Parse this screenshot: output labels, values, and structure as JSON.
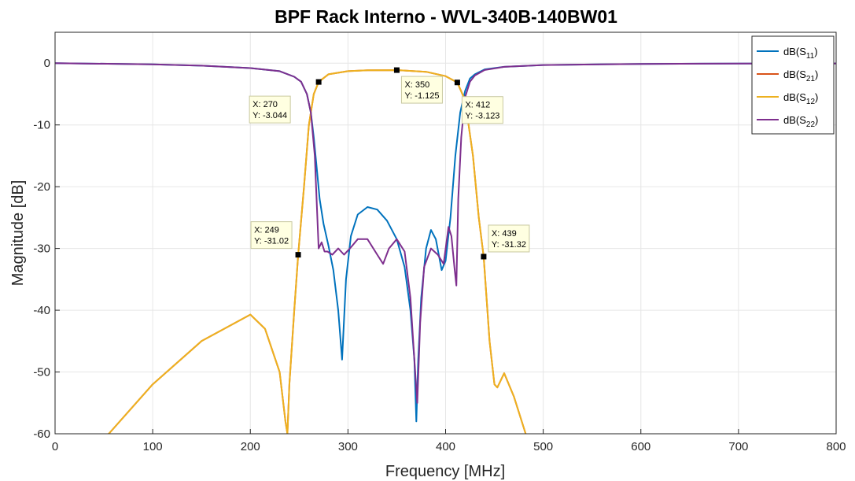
{
  "chart_data": {
    "type": "line",
    "title": "BPF Rack Interno - WVL-340B-140BW01",
    "xlabel": "Frequency [MHz]",
    "ylabel": "Magnitude [dB]",
    "xlim": [
      0,
      800
    ],
    "ylim": [
      -60,
      5
    ],
    "xticks": [
      0,
      100,
      200,
      300,
      400,
      500,
      600,
      700,
      800
    ],
    "yticks": [
      0,
      -10,
      -20,
      -30,
      -40,
      -50,
      -60
    ],
    "grid": true,
    "legend_position": "top-right",
    "series": [
      {
        "name": "dB(S11)",
        "color": "#0072BD",
        "x": [
          0,
          100,
          150,
          200,
          230,
          245,
          252,
          258,
          262,
          265,
          268,
          271,
          275,
          280,
          285,
          290,
          294,
          298,
          303,
          310,
          320,
          330,
          340,
          350,
          358,
          364,
          368,
          370,
          372,
          375,
          380,
          385,
          390,
          396,
          400,
          405,
          410,
          415,
          420,
          425,
          430,
          440,
          460,
          500,
          600,
          700,
          800
        ],
        "y": [
          0,
          -0.2,
          -0.4,
          -0.8,
          -1.3,
          -2.2,
          -3.0,
          -5,
          -8,
          -12,
          -17,
          -22,
          -26,
          -29.5,
          -33.5,
          -40,
          -48,
          -35,
          -28,
          -24.5,
          -23.3,
          -23.7,
          -25.5,
          -28.5,
          -33,
          -40,
          -48,
          -58,
          -48,
          -38,
          -30,
          -27,
          -28.5,
          -33.5,
          -32,
          -25,
          -15,
          -8,
          -4.5,
          -2.5,
          -1.8,
          -1.0,
          -0.6,
          -0.3,
          -0.12,
          -0.06,
          -0.05
        ]
      },
      {
        "name": "dB(S21)",
        "color": "#D95319",
        "x": [
          0,
          55,
          100,
          150,
          200,
          215,
          230,
          236,
          238,
          240,
          245,
          249,
          255,
          260,
          265,
          270,
          280,
          300,
          320,
          350,
          380,
          400,
          412,
          420,
          428,
          434,
          439,
          445,
          450,
          453,
          460,
          470,
          482
        ],
        "y": [
          -66,
          -60,
          -52,
          -45,
          -40.7,
          -43,
          -50,
          -58,
          -60,
          -52,
          -40,
          -31.02,
          -20,
          -10,
          -5,
          -3.044,
          -1.8,
          -1.3,
          -1.15,
          -1.125,
          -1.4,
          -2.1,
          -3.123,
          -6,
          -15,
          -25,
          -31.32,
          -45,
          -52,
          -52.5,
          -50.2,
          -54,
          -60
        ]
      },
      {
        "name": "dB(S12)",
        "color": "#EDB120",
        "x": [
          0,
          55,
          100,
          150,
          200,
          215,
          230,
          236,
          238,
          240,
          245,
          249,
          255,
          260,
          265,
          270,
          280,
          300,
          320,
          350,
          380,
          400,
          412,
          420,
          428,
          434,
          439,
          445,
          450,
          453,
          460,
          470,
          482
        ],
        "y": [
          -66,
          -60,
          -52,
          -45,
          -40.7,
          -43,
          -50,
          -58,
          -60,
          -52,
          -40,
          -31.02,
          -20,
          -10,
          -5,
          -3.044,
          -1.8,
          -1.3,
          -1.15,
          -1.125,
          -1.4,
          -2.1,
          -3.123,
          -6,
          -15,
          -25,
          -31.32,
          -45,
          -52,
          -52.5,
          -50.2,
          -54,
          -60
        ]
      },
      {
        "name": "dB(S22)",
        "color": "#7E2F8E",
        "x": [
          0,
          100,
          150,
          200,
          230,
          245,
          252,
          258,
          262,
          266,
          270,
          273,
          276,
          279,
          284,
          290,
          296,
          302,
          310,
          320,
          330,
          336,
          342,
          350,
          358,
          364,
          368,
          371,
          374,
          378,
          385,
          392,
          398,
          403,
          406,
          409,
          411,
          413,
          416,
          420,
          425,
          430,
          440,
          460,
          500,
          600,
          700,
          800
        ],
        "y": [
          0,
          -0.2,
          -0.4,
          -0.8,
          -1.3,
          -2.2,
          -3.0,
          -5,
          -8,
          -15,
          -30,
          -29,
          -30.5,
          -30.5,
          -31,
          -30,
          -31,
          -30,
          -28.5,
          -28.5,
          -31,
          -32.5,
          -30,
          -28.5,
          -30.5,
          -38,
          -48,
          -55,
          -42,
          -33,
          -30,
          -31,
          -32.5,
          -26.5,
          -28,
          -33,
          -36,
          -22,
          -12,
          -5.5,
          -3,
          -2,
          -1.1,
          -0.6,
          -0.3,
          -0.12,
          -0.06,
          -0.05
        ]
      }
    ],
    "legend": [
      {
        "label": "dB(S",
        "sub": "11",
        "close": ")",
        "color": "#0072BD"
      },
      {
        "label": "dB(S",
        "sub": "21",
        "close": ")",
        "color": "#D95319"
      },
      {
        "label": "dB(S",
        "sub": "12",
        "close": ")",
        "color": "#EDB120"
      },
      {
        "label": "dB(S",
        "sub": "22",
        "close": ")",
        "color": "#7E2F8E"
      }
    ],
    "datatips": [
      {
        "x": 270,
        "y": -3.044,
        "line1": "X: 270",
        "line2": "Y: -3.044"
      },
      {
        "x": 350,
        "y": -1.125,
        "line1": "X: 350",
        "line2": "Y: -1.125"
      },
      {
        "x": 412,
        "y": -3.123,
        "line1": "X: 412",
        "line2": "Y: -3.123"
      },
      {
        "x": 249,
        "y": -31.02,
        "line1": "X: 249",
        "line2": "Y: -31.02"
      },
      {
        "x": 439,
        "y": -31.32,
        "line1": "X: 439",
        "line2": "Y: -31.32"
      }
    ]
  }
}
